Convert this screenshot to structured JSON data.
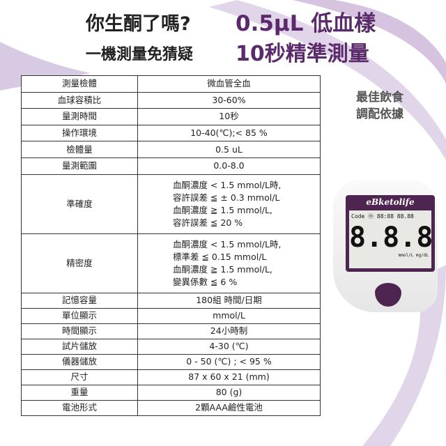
{
  "headline": {
    "left_line1": "你生酮了嗎?",
    "left_line2": "一機測量免猜疑",
    "right_line1": "0.5μL 低血樣",
    "right_line2": "10秒精準測量"
  },
  "side_text": {
    "line1": "最佳飲食",
    "line2": "調配依據"
  },
  "device": {
    "brand": "eBketolife",
    "display_top": "Code ⓜ 88:88 88.88",
    "display_main": "8.8.8",
    "display_units": "mmol/L  mg/dL"
  },
  "colors": {
    "accent": "#5b2a6b"
  },
  "spec_table": [
    {
      "k": "測量檢體",
      "v": "微血管全血"
    },
    {
      "k": "血球容積比",
      "v": "30-60%"
    },
    {
      "k": "量測時間",
      "v": "10秒"
    },
    {
      "k": "操作環境",
      "v": "10-40(℃);< 85 %"
    },
    {
      "k": "檢體量",
      "v": "0.5 uL"
    },
    {
      "k": "量測範圍",
      "v": "0.0-8.0"
    },
    {
      "k": "準確度",
      "lines": [
        "血酮濃度 < 1.5 mmol/L時,",
        "容許誤差 ≦ ± 0.3 mmol/L",
        "血酮濃度 ≧ 1.5 mmol/L,",
        "容許誤差 ≦ 20 %"
      ]
    },
    {
      "k": "精密度",
      "lines": [
        "血酮濃度 < 1.5 mmol/L時,",
        "標準差 ≦ 0.15 mmol/L",
        "血酮濃度 ≧ 1.5 mmol/L,",
        "變異係數 ≦ 6 %"
      ]
    },
    {
      "k": "記憶容量",
      "v": "180組 時間/日期"
    },
    {
      "k": "單位顯示",
      "v": "mmol/L"
    },
    {
      "k": "時間顯示",
      "v": "24小時制"
    },
    {
      "k": "試片儲放",
      "v": "4-30 (℃)"
    },
    {
      "k": "儀器儲放",
      "v": "0 - 50 (℃) ; < 95 %"
    },
    {
      "k": "尺寸",
      "v": "87 x 60 x 21 (mm)"
    },
    {
      "k": "重量",
      "v": "80 (g)"
    },
    {
      "k": "電池形式",
      "v": "2顆AAA鹼性電池"
    }
  ]
}
